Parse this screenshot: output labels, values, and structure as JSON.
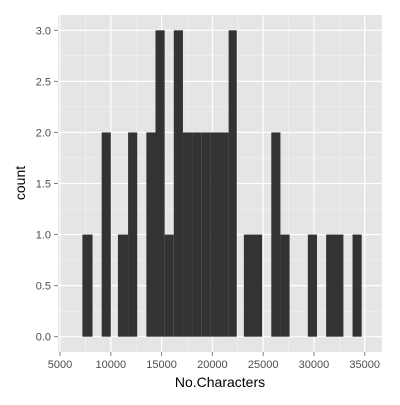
{
  "chart_data": {
    "type": "bar",
    "subtype": "histogram",
    "xlabel": "No.Characters",
    "ylabel": "count",
    "xlim": [
      4800,
      36700
    ],
    "ylim": [
      -0.15,
      3.15
    ],
    "x_ticks": [
      5000,
      10000,
      15000,
      20000,
      25000,
      30000,
      35000
    ],
    "x_tick_labels": [
      "5000",
      "10000",
      "15000",
      "20000",
      "25000",
      "30000",
      "35000"
    ],
    "y_ticks": [
      0,
      0.5,
      1,
      1.5,
      2,
      2.5,
      3
    ],
    "y_tick_labels": [
      "0.0",
      "0.5",
      "1.0",
      "1.5",
      "2.0",
      "2.5",
      "3.0"
    ],
    "grid": true,
    "bins": [
      {
        "x_start": 7200,
        "x_end": 8200,
        "count": 1
      },
      {
        "x_start": 9100,
        "x_end": 10000,
        "count": 2
      },
      {
        "x_start": 10700,
        "x_end": 11700,
        "count": 1
      },
      {
        "x_start": 11700,
        "x_end": 12600,
        "count": 2
      },
      {
        "x_start": 13500,
        "x_end": 14400,
        "count": 2
      },
      {
        "x_start": 14400,
        "x_end": 15300,
        "count": 3
      },
      {
        "x_start": 15300,
        "x_end": 16200,
        "count": 1
      },
      {
        "x_start": 16200,
        "x_end": 17100,
        "count": 3
      },
      {
        "x_start": 17100,
        "x_end": 18000,
        "count": 2
      },
      {
        "x_start": 18000,
        "x_end": 18900,
        "count": 2
      },
      {
        "x_start": 18900,
        "x_end": 19800,
        "count": 2
      },
      {
        "x_start": 19800,
        "x_end": 20700,
        "count": 2
      },
      {
        "x_start": 20700,
        "x_end": 21600,
        "count": 2
      },
      {
        "x_start": 21600,
        "x_end": 22400,
        "count": 3
      },
      {
        "x_start": 23100,
        "x_end": 24900,
        "count": 1
      },
      {
        "x_start": 25800,
        "x_end": 26700,
        "count": 2
      },
      {
        "x_start": 26700,
        "x_end": 27600,
        "count": 1
      },
      {
        "x_start": 29400,
        "x_end": 30300,
        "count": 1
      },
      {
        "x_start": 31200,
        "x_end": 32900,
        "count": 1
      },
      {
        "x_start": 33800,
        "x_end": 34700,
        "count": 1
      }
    ]
  },
  "colors": {
    "panel_background": "#e5e5e5",
    "grid_major": "#ffffff",
    "grid_minor": "#f2f2f2",
    "bar_fill": "#333333",
    "axis_text": "#4d4d4d",
    "title_text": "#000000"
  }
}
